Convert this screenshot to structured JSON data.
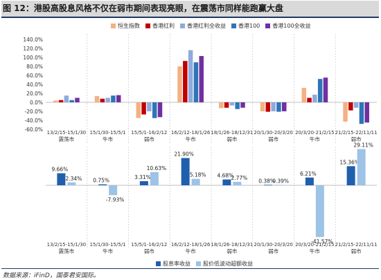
{
  "figure": {
    "title": "图 12：港股高股息风格不仅在弱市期间表现亮眼，在震荡市同样能跑赢大盘",
    "source": "数据来源：iFinD，国泰君安国际。"
  },
  "chart_data": [
    {
      "type": "bar",
      "categories": [
        "13/2/15-15/1/30",
        "15/1/30-15/5/1",
        "15/5/1-16/2/12",
        "16/2/12-18/1/26",
        "18/1/26-18/12/31",
        "20/1/30-20/3/20",
        "20/3/20-21/2/15",
        "21/2/15-22/11/11"
      ],
      "category_sublabels": [
        "震荡市",
        "牛市",
        "弱市",
        "牛市",
        "弱市",
        "弱市",
        "牛市",
        "弱市"
      ],
      "series": [
        {
          "name": "恒生指数",
          "color": "#f4b183",
          "values": [
            4,
            14,
            -35,
            80,
            -13,
            -20,
            32,
            -43
          ]
        },
        {
          "name": "香港红利",
          "color": "#c00000",
          "values": [
            5,
            8,
            -27,
            92,
            -12,
            -21,
            10,
            -18
          ]
        },
        {
          "name": "香港红利全收益",
          "color": "#8faadc",
          "values": [
            15,
            10,
            -20,
            116,
            -7,
            -20,
            17,
            -12
          ]
        },
        {
          "name": "香港100",
          "color": "#2e75b6",
          "values": [
            5,
            15,
            -35,
            89,
            -15,
            -21,
            52,
            -48
          ]
        },
        {
          "name": "香港100全收益",
          "color": "#7030a0",
          "values": [
            10,
            16,
            -33,
            103,
            -12,
            -20,
            55,
            -45
          ]
        }
      ],
      "ylim": [
        -60,
        140
      ],
      "yticks": [
        "140.0%",
        "120.0%",
        "100.0%",
        "80.0%",
        "60.0%",
        "40.0%",
        "20.0%",
        "0.0%",
        "-20.0%",
        "-40.0%",
        "-60.0%"
      ],
      "grid": false,
      "legend": "top"
    },
    {
      "type": "bar",
      "categories": [
        "13/2/15-15/1/30",
        "15/1/30-15/5/1",
        "15/5/1-16/2/12",
        "16/2/12-18/1/26",
        "18/1/26-18/12/31",
        "20/1/30-20/3/20",
        "20/3/20-21/2/15",
        "21/2/15-22/11/11"
      ],
      "category_sublabels": [
        "震荡市",
        "牛市",
        "弱市",
        "牛市",
        "弱市",
        "弱市",
        "牛市",
        "弱市"
      ],
      "series": [
        {
          "name": "股息率收益",
          "color": "#1f5fad",
          "values": [
            9.66,
            0.75,
            3.31,
            21.9,
            4.68,
            0.38,
            6.21,
            15.36
          ],
          "labels": [
            "9.66%",
            "0.75%",
            "3.31%",
            "21.90%",
            "4.68%",
            "0.38%",
            "6.21%",
            "15.36%"
          ]
        },
        {
          "name": "股价低波动超额收益",
          "color": "#9dc3e6",
          "values": [
            2.34,
            -7.93,
            10.63,
            5.18,
            2.77,
            0.39,
            -41.57,
            29.11
          ],
          "labels": [
            "2.34%",
            "-7.93%",
            "10.63%",
            "5.18%",
            "2.77%",
            "0.39%",
            "-41.57%",
            "29.11%"
          ]
        }
      ],
      "legend": "bottom"
    }
  ]
}
